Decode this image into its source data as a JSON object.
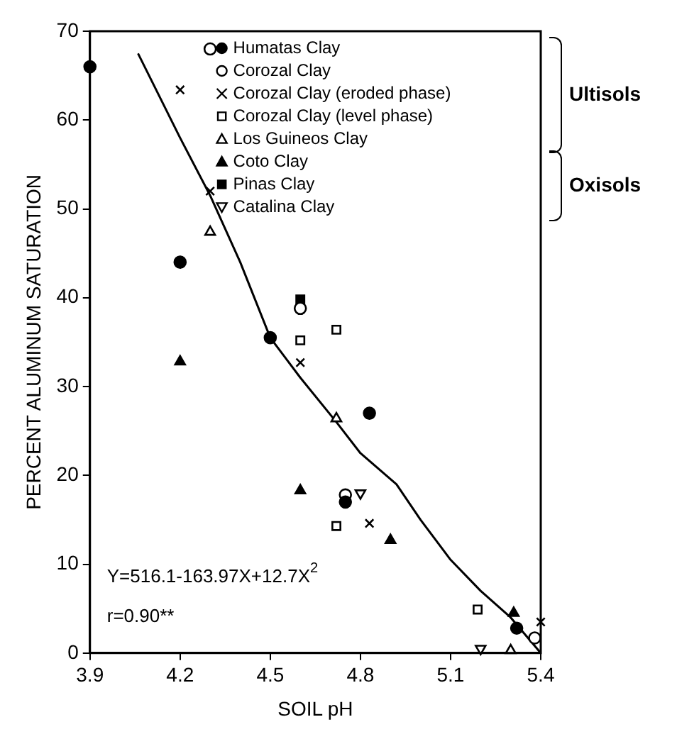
{
  "chart_data": {
    "type": "scatter",
    "xlabel": "SOIL pH",
    "ylabel": "PERCENT ALUMINUM SATURATION",
    "xlim": [
      3.9,
      5.4
    ],
    "xticks": [
      3.9,
      4.2,
      4.5,
      4.8,
      5.1,
      5.4
    ],
    "ylim": [
      0,
      70
    ],
    "yticks": [
      0,
      10,
      20,
      30,
      40,
      50,
      60,
      70
    ],
    "grid": false,
    "legend": "top right",
    "annotations": [
      "Y=516.1-163.97X+12.7X$^{2}$",
      "r=0.90**",
      "Ultisols",
      "Oxisols"
    ],
    "series": [
      {
        "name": "Humatas Clay",
        "color": "#000000",
        "marker": "circle",
        "x": [
          3.9,
          4.2,
          4.5,
          4.75,
          4.83,
          5.32
        ],
        "values": [
          66,
          44,
          35.5,
          17,
          27,
          2.8
        ]
      },
      {
        "name": "Corozal Clay",
        "color": "#000000",
        "marker": "circle-open",
        "x": [
          4.3,
          4.6,
          4.75,
          5.38
        ],
        "values": [
          68,
          38.8,
          17.8,
          1.7
        ]
      },
      {
        "name": "Corozal Clay (eroded phase)",
        "color": "#000000",
        "marker": "cross",
        "x": [
          4.2,
          4.3,
          4.6,
          4.83,
          5.4
        ],
        "values": [
          63.4,
          52,
          32.7,
          14.6,
          3.5
        ]
      },
      {
        "name": "Corozal Clay (level phase)",
        "color": "#000000",
        "marker": "square-open",
        "x": [
          4.6,
          4.72,
          4.72,
          5.19
        ],
        "values": [
          35.2,
          36.4,
          14.3,
          4.9
        ]
      },
      {
        "name": "Los Guineos Clay",
        "color": "#000000",
        "marker": "triangle-open",
        "x": [
          4.3,
          4.72,
          5.3
        ],
        "values": [
          47.4,
          26.4,
          0.3
        ]
      },
      {
        "name": "Coto Clay",
        "color": "#000000",
        "marker": "triangle",
        "x": [
          4.2,
          4.6,
          4.9,
          5.31
        ],
        "values": [
          32.8,
          18.3,
          12.7,
          4.5
        ]
      },
      {
        "name": "Pinas Clay",
        "color": "#000000",
        "marker": "square",
        "x": [
          4.6
        ],
        "values": [
          39.8
        ]
      },
      {
        "name": "Catalina Clay",
        "color": "#000000",
        "marker": "triangle-down-open",
        "x": [
          4.8,
          5.2
        ],
        "values": [
          18,
          0.5
        ]
      },
      {
        "type": "line",
        "color": "#000000",
        "marker": "none",
        "line_style": "solid",
        "x": [
          4.06,
          4.2,
          4.3,
          4.4,
          4.5,
          4.6,
          4.72,
          4.8,
          4.92,
          5.0,
          5.1,
          5.2,
          5.3,
          5.4
        ],
        "values": [
          67.5,
          58,
          51.5,
          44,
          35.5,
          31,
          26,
          22.5,
          19,
          15,
          10.5,
          7,
          4,
          0
        ]
      }
    ]
  }
}
